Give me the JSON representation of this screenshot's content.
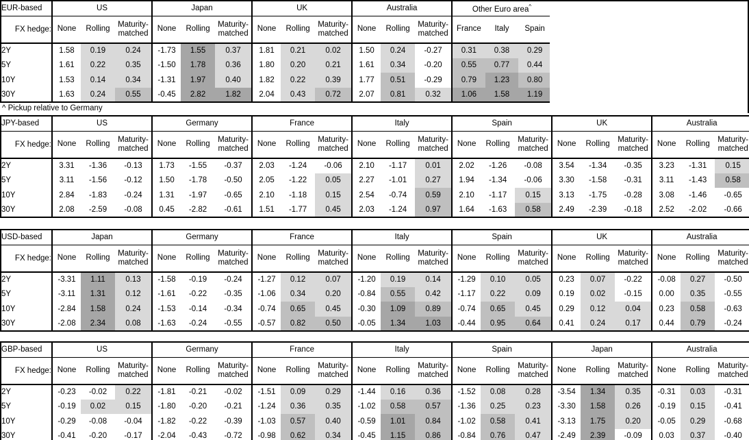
{
  "footnote": "^ Pickup relative to Germany",
  "labels": {
    "fx_hedge": "FX hedge:"
  },
  "tenors": [
    "2Y",
    "5Y",
    "10Y",
    "30Y"
  ],
  "colors": {
    "shade_light": "#d9d9d9",
    "shade_medium": "#bfbfbf",
    "shade_dark": "#a6a6a6",
    "border": "#000000"
  },
  "shade_legend": {
    "white": "value < 0",
    "light": "0 to 0.5",
    "medium": "0.5 to 1.0",
    "dark": ">= 1.0"
  },
  "tables": [
    {
      "base": "EUR-based",
      "groups": [
        {
          "country": "US",
          "cols": [
            "None",
            "Rolling",
            "Maturity-matched"
          ],
          "shade_cols": [
            1,
            2
          ],
          "rows": [
            [
              "1.58",
              "0.19",
              "0.24"
            ],
            [
              "1.61",
              "0.22",
              "0.35"
            ],
            [
              "1.53",
              "0.14",
              "0.34"
            ],
            [
              "1.63",
              "0.24",
              "0.55"
            ]
          ]
        },
        {
          "country": "Japan",
          "cols": [
            "None",
            "Rolling",
            "Maturity-matched"
          ],
          "shade_cols": [
            1,
            2
          ],
          "rows": [
            [
              "-1.73",
              "1.55",
              "0.37"
            ],
            [
              "-1.50",
              "1.78",
              "0.36"
            ],
            [
              "-1.31",
              "1.97",
              "0.40"
            ],
            [
              "-0.45",
              "2.82",
              "1.82"
            ]
          ]
        },
        {
          "country": "UK",
          "cols": [
            "None",
            "Rolling",
            "Maturity-matched"
          ],
          "shade_cols": [
            1,
            2
          ],
          "rows": [
            [
              "1.81",
              "0.21",
              "0.02"
            ],
            [
              "1.80",
              "0.20",
              "0.21"
            ],
            [
              "1.82",
              "0.22",
              "0.39"
            ],
            [
              "2.04",
              "0.43",
              "0.72"
            ]
          ]
        },
        {
          "country": "Australia",
          "cols": [
            "None",
            "Rolling",
            "Maturity-matched"
          ],
          "shade_cols": [
            1,
            2
          ],
          "rows": [
            [
              "1.50",
              "0.24",
              "-0.27"
            ],
            [
              "1.61",
              "0.34",
              "-0.20"
            ],
            [
              "1.77",
              "0.51",
              "-0.29"
            ],
            [
              "2.07",
              "0.81",
              "0.32"
            ]
          ]
        },
        {
          "country": "Other Euro area",
          "note": "^",
          "cols": [
            "France",
            "Italy",
            "Spain"
          ],
          "shade_cols": [
            0,
            1,
            2
          ],
          "rows": [
            [
              "0.31",
              "0.38",
              "0.29"
            ],
            [
              "0.55",
              "0.77",
              "0.44"
            ],
            [
              "0.79",
              "1.23",
              "0.80"
            ],
            [
              "1.06",
              "1.58",
              "1.19"
            ]
          ]
        }
      ]
    },
    {
      "base": "JPY-based",
      "groups": [
        {
          "country": "US",
          "cols": [
            "None",
            "Rolling",
            "Maturity-matched"
          ],
          "shade_cols": [
            1,
            2
          ],
          "rows": [
            [
              "3.31",
              "-1.36",
              "-0.13"
            ],
            [
              "3.11",
              "-1.56",
              "-0.12"
            ],
            [
              "2.84",
              "-1.83",
              "-0.24"
            ],
            [
              "2.08",
              "-2.59",
              "-0.08"
            ]
          ]
        },
        {
          "country": "Germany",
          "cols": [
            "None",
            "Rolling",
            "Maturity-matched"
          ],
          "shade_cols": [
            1,
            2
          ],
          "rows": [
            [
              "1.73",
              "-1.55",
              "-0.37"
            ],
            [
              "1.50",
              "-1.78",
              "-0.50"
            ],
            [
              "1.31",
              "-1.97",
              "-0.65"
            ],
            [
              "0.45",
              "-2.82",
              "-0.61"
            ]
          ]
        },
        {
          "country": "France",
          "cols": [
            "None",
            "Rolling",
            "Maturity-matched"
          ],
          "shade_cols": [
            1,
            2
          ],
          "rows": [
            [
              "2.03",
              "-1.24",
              "-0.06"
            ],
            [
              "2.05",
              "-1.22",
              "0.05"
            ],
            [
              "2.10",
              "-1.18",
              "0.15"
            ],
            [
              "1.51",
              "-1.77",
              "0.45"
            ]
          ]
        },
        {
          "country": "Italy",
          "cols": [
            "None",
            "Rolling",
            "Maturity-matched"
          ],
          "shade_cols": [
            1,
            2
          ],
          "rows": [
            [
              "2.10",
              "-1.17",
              "0.01"
            ],
            [
              "2.27",
              "-1.01",
              "0.27"
            ],
            [
              "2.54",
              "-0.74",
              "0.59"
            ],
            [
              "2.03",
              "-1.24",
              "0.97"
            ]
          ]
        },
        {
          "country": "Spain",
          "cols": [
            "None",
            "Rolling",
            "Maturity-matched"
          ],
          "shade_cols": [
            1,
            2
          ],
          "rows": [
            [
              "2.02",
              "-1.26",
              "-0.08"
            ],
            [
              "1.94",
              "-1.34",
              "-0.06"
            ],
            [
              "2.10",
              "-1.17",
              "0.15"
            ],
            [
              "1.64",
              "-1.63",
              "0.58"
            ]
          ]
        },
        {
          "country": "UK",
          "cols": [
            "None",
            "Rolling",
            "Maturity-matched"
          ],
          "shade_cols": [
            1,
            2
          ],
          "rows": [
            [
              "3.54",
              "-1.34",
              "-0.35"
            ],
            [
              "3.30",
              "-1.58",
              "-0.31"
            ],
            [
              "3.13",
              "-1.75",
              "-0.28"
            ],
            [
              "2.49",
              "-2.39",
              "-0.18"
            ]
          ]
        },
        {
          "country": "Australia",
          "cols": [
            "None",
            "Rolling",
            "Maturity-matched"
          ],
          "shade_cols": [
            1,
            2
          ],
          "rows": [
            [
              "3.23",
              "-1.31",
              "0.15"
            ],
            [
              "3.11",
              "-1.43",
              "0.58"
            ],
            [
              "3.08",
              "-1.46",
              "-0.65"
            ],
            [
              "2.52",
              "-2.02",
              "-0.66"
            ]
          ]
        }
      ]
    },
    {
      "base": "USD-based",
      "groups": [
        {
          "country": "Japan",
          "cols": [
            "None",
            "Rolling",
            "Maturity-matched"
          ],
          "shade_cols": [
            1,
            2
          ],
          "rows": [
            [
              "-3.31",
              "1.11",
              "0.13"
            ],
            [
              "-3.11",
              "1.31",
              "0.12"
            ],
            [
              "-2.84",
              "1.58",
              "0.24"
            ],
            [
              "-2.08",
              "2.34",
              "0.08"
            ]
          ]
        },
        {
          "country": "Germany",
          "cols": [
            "None",
            "Rolling",
            "Maturity-matched"
          ],
          "shade_cols": [
            1,
            2
          ],
          "rows": [
            [
              "-1.58",
              "-0.19",
              "-0.24"
            ],
            [
              "-1.61",
              "-0.22",
              "-0.35"
            ],
            [
              "-1.53",
              "-0.14",
              "-0.34"
            ],
            [
              "-1.63",
              "-0.24",
              "-0.55"
            ]
          ]
        },
        {
          "country": "France",
          "cols": [
            "None",
            "Rolling",
            "Maturity-matched"
          ],
          "shade_cols": [
            1,
            2
          ],
          "rows": [
            [
              "-1.27",
              "0.12",
              "0.07"
            ],
            [
              "-1.06",
              "0.34",
              "0.20"
            ],
            [
              "-0.74",
              "0.65",
              "0.45"
            ],
            [
              "-0.57",
              "0.82",
              "0.50"
            ]
          ]
        },
        {
          "country": "Italy",
          "cols": [
            "None",
            "Rolling",
            "Maturity-matched"
          ],
          "shade_cols": [
            1,
            2
          ],
          "rows": [
            [
              "-1.20",
              "0.19",
              "0.14"
            ],
            [
              "-0.84",
              "0.55",
              "0.42"
            ],
            [
              "-0.30",
              "1.09",
              "0.89"
            ],
            [
              "-0.05",
              "1.34",
              "1.03"
            ]
          ]
        },
        {
          "country": "Spain",
          "cols": [
            "None",
            "Rolling",
            "Maturity-matched"
          ],
          "shade_cols": [
            1,
            2
          ],
          "rows": [
            [
              "-1.29",
              "0.10",
              "0.05"
            ],
            [
              "-1.17",
              "0.22",
              "0.09"
            ],
            [
              "-0.74",
              "0.65",
              "0.45"
            ],
            [
              "-0.44",
              "0.95",
              "0.64"
            ]
          ]
        },
        {
          "country": "UK",
          "cols": [
            "None",
            "Rolling",
            "Maturity-matched"
          ],
          "shade_cols": [
            1,
            2
          ],
          "rows": [
            [
              "0.23",
              "0.07",
              "-0.22"
            ],
            [
              "0.19",
              "0.02",
              "-0.15"
            ],
            [
              "0.29",
              "0.12",
              "0.04"
            ],
            [
              "0.41",
              "0.24",
              "0.17"
            ]
          ]
        },
        {
          "country": "Australia",
          "cols": [
            "None",
            "Rolling",
            "Maturity-matched"
          ],
          "shade_cols": [
            1,
            2
          ],
          "rows": [
            [
              "-0.08",
              "0.27",
              "-0.50"
            ],
            [
              "0.00",
              "0.35",
              "-0.55"
            ],
            [
              "0.23",
              "0.58",
              "-0.63"
            ],
            [
              "0.44",
              "0.79",
              "-0.24"
            ]
          ]
        }
      ]
    },
    {
      "base": "GBP-based",
      "groups": [
        {
          "country": "US",
          "cols": [
            "None",
            "Rolling",
            "Maturity-matched"
          ],
          "shade_cols": [
            1,
            2
          ],
          "rows": [
            [
              "-0.23",
              "-0.02",
              "0.22"
            ],
            [
              "-0.19",
              "0.02",
              "0.15"
            ],
            [
              "-0.29",
              "-0.08",
              "-0.04"
            ],
            [
              "-0.41",
              "-0.20",
              "-0.17"
            ]
          ]
        },
        {
          "country": "Germany",
          "cols": [
            "None",
            "Rolling",
            "Maturity-matched"
          ],
          "shade_cols": [
            1,
            2
          ],
          "rows": [
            [
              "-1.81",
              "-0.21",
              "-0.02"
            ],
            [
              "-1.80",
              "-0.20",
              "-0.21"
            ],
            [
              "-1.82",
              "-0.22",
              "-0.39"
            ],
            [
              "-2.04",
              "-0.43",
              "-0.72"
            ]
          ]
        },
        {
          "country": "France",
          "cols": [
            "None",
            "Rolling",
            "Maturity-matched"
          ],
          "shade_cols": [
            1,
            2
          ],
          "rows": [
            [
              "-1.51",
              "0.09",
              "0.29"
            ],
            [
              "-1.24",
              "0.36",
              "0.35"
            ],
            [
              "-1.03",
              "0.57",
              "0.40"
            ],
            [
              "-0.98",
              "0.62",
              "0.34"
            ]
          ]
        },
        {
          "country": "Italy",
          "cols": [
            "None",
            "Rolling",
            "Maturity-matched"
          ],
          "shade_cols": [
            1,
            2
          ],
          "rows": [
            [
              "-1.44",
              "0.16",
              "0.36"
            ],
            [
              "-1.02",
              "0.58",
              "0.57"
            ],
            [
              "-0.59",
              "1.01",
              "0.84"
            ],
            [
              "-0.45",
              "1.15",
              "0.86"
            ]
          ]
        },
        {
          "country": "Spain",
          "cols": [
            "None",
            "Rolling",
            "Maturity-matched"
          ],
          "shade_cols": [
            1,
            2
          ],
          "rows": [
            [
              "-1.52",
              "0.08",
              "0.28"
            ],
            [
              "-1.36",
              "0.25",
              "0.23"
            ],
            [
              "-1.02",
              "0.58",
              "0.41"
            ],
            [
              "-0.84",
              "0.76",
              "0.47"
            ]
          ]
        },
        {
          "country": "Japan",
          "cols": [
            "None",
            "Rolling",
            "Maturity-matched"
          ],
          "shade_cols": [
            1,
            2
          ],
          "rows": [
            [
              "-3.54",
              "1.34",
              "0.35"
            ],
            [
              "-3.30",
              "1.58",
              "0.26"
            ],
            [
              "-3.13",
              "1.75",
              "0.20"
            ],
            [
              "-2.49",
              "2.39",
              "-0.09"
            ]
          ]
        },
        {
          "country": "Australia",
          "cols": [
            "None",
            "Rolling",
            "Maturity-matched"
          ],
          "shade_cols": [
            1,
            2
          ],
          "rows": [
            [
              "-0.31",
              "0.03",
              "-0.31"
            ],
            [
              "-0.19",
              "0.15",
              "-0.41"
            ],
            [
              "-0.05",
              "0.29",
              "-0.68"
            ],
            [
              "0.03",
              "0.37",
              "-0.40"
            ]
          ]
        }
      ]
    }
  ]
}
